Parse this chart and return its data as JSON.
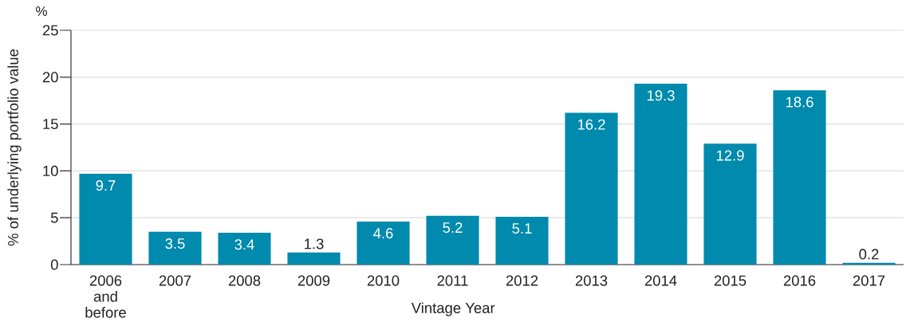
{
  "chart_data": {
    "type": "bar",
    "xlabel": "Vintage Year",
    "ylabel": "% of underlying portfolio value",
    "annotations": [
      "%"
    ],
    "categories": [
      "2006 and before",
      "2007",
      "2008",
      "2009",
      "2010",
      "2011",
      "2012",
      "2013",
      "2014",
      "2015",
      "2016",
      "2017"
    ],
    "values": [
      9.7,
      3.5,
      3.4,
      1.3,
      4.6,
      5.2,
      5.1,
      16.2,
      19.3,
      12.9,
      18.6,
      0.2
    ],
    "color": "#008aad",
    "ylim": [
      0,
      25
    ],
    "yticks": [
      0,
      5,
      10,
      15,
      20,
      25
    ],
    "grid": "y",
    "data_labels": true
  }
}
